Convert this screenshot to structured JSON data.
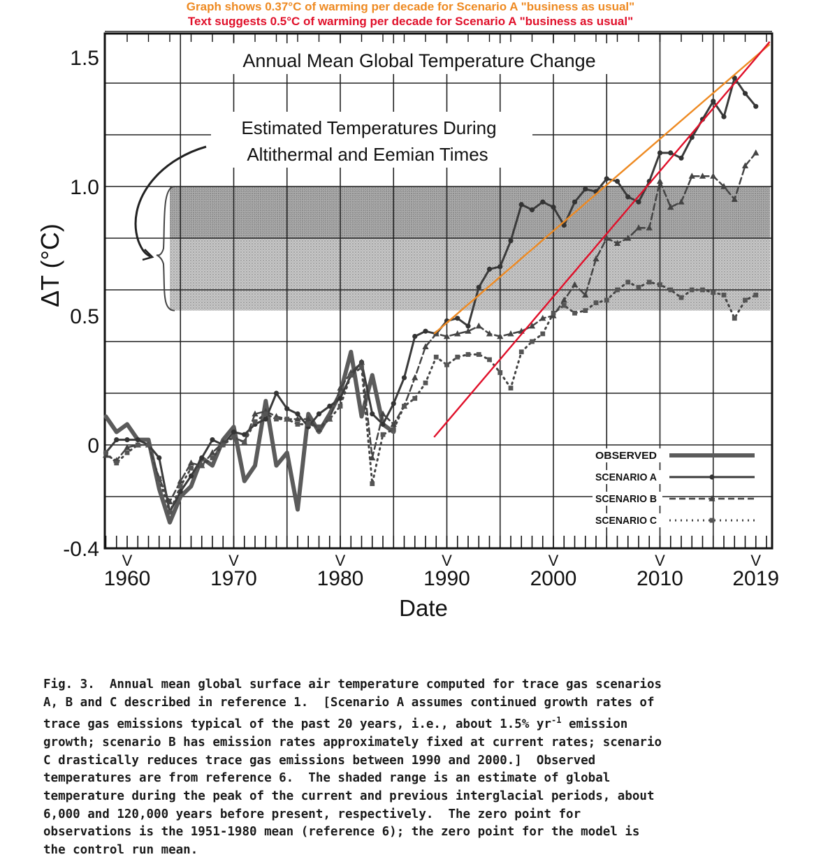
{
  "annotations": {
    "orange_note": "Graph shows 0.37°C of warming per decade for Scenario A \"business as usual\"",
    "red_note": "Text suggests 0.5°C of warming per decade for Scenario A \"business as usual\"",
    "orange_color": "#ee8a22",
    "red_color": "#e0102a"
  },
  "chart_data": {
    "type": "line",
    "title": "Annual Mean Global Temperature Change",
    "xlabel": "Date",
    "ylabel": "ΔT (°C)",
    "xlim": [
      1958,
      2020
    ],
    "ylim": [
      -0.4,
      1.6
    ],
    "x_ticks": [
      1960,
      1970,
      1980,
      1990,
      2000,
      2010,
      2019
    ],
    "x_tick_labels": [
      "1960",
      "1970",
      "1980",
      "1990",
      "2000",
      "2010",
      "2019"
    ],
    "y_ticks": [
      -0.4,
      0,
      0.5,
      1.0,
      1.5
    ],
    "y_tick_labels": [
      "-0.4",
      "0",
      "0.5",
      "1.0",
      "1.5"
    ],
    "tick_mark": "V",
    "grid": true,
    "shaded_region": {
      "label_line1": "Estimated Temperatures During",
      "label_line2": "Altithermal and Eemian Times",
      "x_start": 1964,
      "x_end": 2020,
      "y_low": 0.52,
      "y_high": 1.0
    },
    "legend": {
      "position": "bottom-right",
      "entries": [
        "OBSERVED",
        "SCENARIO A",
        "SCENARIO B",
        "SCENARIO C"
      ]
    },
    "series": [
      {
        "name": "OBSERVED",
        "style": "solid-thick",
        "x": [
          1958,
          1959,
          1960,
          1961,
          1962,
          1963,
          1964,
          1965,
          1966,
          1967,
          1968,
          1969,
          1970,
          1971,
          1972,
          1973,
          1974,
          1975,
          1976,
          1977,
          1978,
          1979,
          1980,
          1981,
          1982,
          1983,
          1984,
          1985
        ],
        "values": [
          0.11,
          0.05,
          0.08,
          0.02,
          0.02,
          -0.17,
          -0.3,
          -0.2,
          -0.16,
          -0.05,
          -0.08,
          0.02,
          0.07,
          -0.14,
          -0.08,
          0.17,
          -0.08,
          -0.03,
          -0.25,
          0.12,
          0.05,
          0.12,
          0.2,
          0.36,
          0.11,
          0.27,
          0.08,
          0.05
        ]
      },
      {
        "name": "SCENARIO A",
        "style": "solid-circles",
        "x": [
          1958,
          1959,
          1960,
          1961,
          1962,
          1963,
          1964,
          1965,
          1966,
          1967,
          1968,
          1969,
          1970,
          1971,
          1972,
          1973,
          1974,
          1975,
          1976,
          1977,
          1978,
          1979,
          1980,
          1981,
          1982,
          1983,
          1984,
          1985,
          1986,
          1987,
          1988,
          1989,
          1990,
          1991,
          1992,
          1993,
          1994,
          1995,
          1996,
          1997,
          1998,
          1999,
          2000,
          2001,
          2002,
          2003,
          2004,
          2005,
          2006,
          2007,
          2008,
          2009,
          2010,
          2011,
          2012,
          2013,
          2014,
          2015,
          2016,
          2017,
          2018,
          2019
        ],
        "values": [
          -0.03,
          0.02,
          0.02,
          0.02,
          0.0,
          -0.05,
          -0.26,
          -0.18,
          -0.12,
          -0.05,
          0.02,
          0.0,
          0.05,
          0.04,
          0.08,
          0.1,
          0.2,
          0.14,
          0.12,
          0.07,
          0.12,
          0.15,
          0.18,
          0.27,
          0.32,
          0.12,
          0.08,
          0.16,
          0.26,
          0.42,
          0.44,
          0.43,
          0.48,
          0.49,
          0.46,
          0.61,
          0.68,
          0.69,
          0.79,
          0.93,
          0.91,
          0.94,
          0.92,
          0.85,
          0.94,
          0.99,
          0.98,
          1.03,
          1.02,
          0.96,
          0.94,
          1.02,
          1.13,
          1.13,
          1.11,
          1.19,
          1.26,
          1.33,
          1.27,
          1.42,
          1.36,
          1.31
        ]
      },
      {
        "name": "SCENARIO B",
        "style": "dashed-triangles",
        "x": [
          1958,
          1959,
          1960,
          1961,
          1962,
          1963,
          1964,
          1965,
          1966,
          1967,
          1968,
          1969,
          1970,
          1971,
          1972,
          1973,
          1974,
          1975,
          1976,
          1977,
          1978,
          1979,
          1980,
          1981,
          1982,
          1983,
          1984,
          1985,
          1986,
          1987,
          1988,
          1989,
          1990,
          1991,
          1992,
          1993,
          1994,
          1995,
          1996,
          1997,
          1998,
          1999,
          2000,
          2001,
          2002,
          2003,
          2004,
          2005,
          2006,
          2007,
          2008,
          2009,
          2010,
          2011,
          2012,
          2013,
          2014,
          2015,
          2016,
          2017,
          2018,
          2019
        ],
        "values": [
          -0.04,
          -0.06,
          -0.01,
          0.0,
          0.0,
          -0.13,
          -0.22,
          -0.14,
          -0.07,
          -0.08,
          -0.03,
          0.01,
          0.03,
          0.01,
          0.12,
          0.13,
          0.11,
          0.1,
          0.1,
          0.1,
          0.06,
          0.1,
          0.22,
          0.28,
          0.32,
          -0.05,
          0.12,
          0.08,
          0.15,
          0.26,
          0.38,
          0.43,
          0.42,
          0.43,
          0.44,
          0.46,
          0.43,
          0.42,
          0.43,
          0.44,
          0.46,
          0.49,
          0.5,
          0.56,
          0.62,
          0.58,
          0.72,
          0.8,
          0.78,
          0.8,
          0.84,
          0.84,
          1.02,
          0.92,
          0.94,
          1.04,
          1.04,
          1.04,
          1.0,
          0.95,
          1.08,
          1.13
        ]
      },
      {
        "name": "SCENARIO C",
        "style": "dotted-squares",
        "x": [
          1958,
          1959,
          1960,
          1961,
          1962,
          1963,
          1964,
          1965,
          1966,
          1967,
          1968,
          1969,
          1970,
          1971,
          1972,
          1973,
          1974,
          1975,
          1976,
          1977,
          1978,
          1979,
          1980,
          1981,
          1982,
          1983,
          1984,
          1985,
          1986,
          1987,
          1988,
          1989,
          1990,
          1991,
          1992,
          1993,
          1994,
          1995,
          1996,
          1997,
          1998,
          1999,
          2000,
          2001,
          2002,
          2003,
          2004,
          2005,
          2006,
          2007,
          2008,
          2009,
          2010,
          2011,
          2012,
          2013,
          2014,
          2015,
          2016,
          2017,
          2018,
          2019
        ],
        "values": [
          -0.03,
          -0.07,
          -0.03,
          0.0,
          0.0,
          -0.13,
          -0.26,
          -0.16,
          -0.09,
          -0.08,
          -0.05,
          0.0,
          0.03,
          0.01,
          0.09,
          0.12,
          0.1,
          0.1,
          0.08,
          0.08,
          0.07,
          0.1,
          0.15,
          0.27,
          0.3,
          -0.15,
          0.04,
          0.06,
          0.15,
          0.18,
          0.24,
          0.34,
          0.31,
          0.34,
          0.35,
          0.35,
          0.33,
          0.28,
          0.22,
          0.36,
          0.4,
          0.43,
          0.51,
          0.54,
          0.51,
          0.52,
          0.55,
          0.56,
          0.6,
          0.63,
          0.61,
          0.63,
          0.62,
          0.6,
          0.57,
          0.6,
          0.6,
          0.59,
          0.58,
          0.49,
          0.56,
          0.58
        ]
      }
    ],
    "trend_lines": [
      {
        "name": "orange-trend",
        "color": "#ee8a22",
        "x": [
          1988.8,
          2020.3
        ],
        "values": [
          0.43,
          1.55
        ]
      },
      {
        "name": "red-trend",
        "color": "#e0102a",
        "x": [
          1988.8,
          2020.3
        ],
        "values": [
          0.03,
          1.56
        ]
      }
    ]
  },
  "caption": {
    "lines": [
      "Fig. 3.  Annual mean global surface air temperature computed for trace gas scenarios",
      "A, B and C described in reference 1.  [Scenario A assumes continued growth rates of",
      "trace gas emissions typical of the past 20 years, i.e., about 1.5% yr",
      "-1",
      " emission",
      "growth; scenario B has emission rates approximately fixed at current rates; scenario",
      "C drastically reduces trace gas emissions between 1990 and 2000.]  Observed",
      "temperatures are from reference 6.  The shaded range is an estimate of global",
      "temperature during the peak of the current and previous interglacial periods, about",
      "6,000 and 120,000 years before present, respectively.  The zero point for",
      "observations is the 1951-1980 mean (reference 6); the zero point for the model is",
      "the control run mean."
    ]
  }
}
